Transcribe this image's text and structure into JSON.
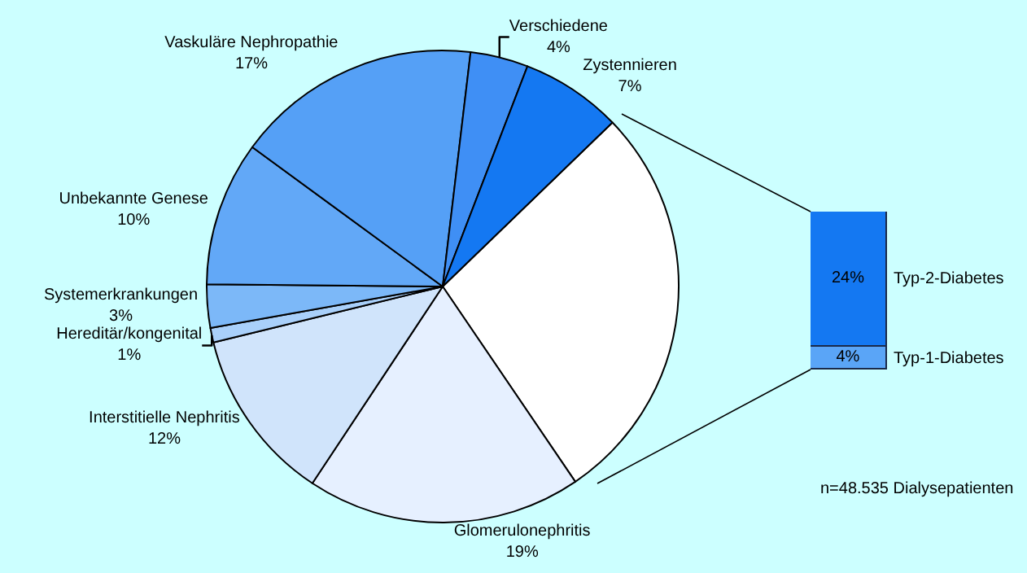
{
  "chart_data": [
    {
      "type": "pie",
      "categories": [
        null,
        "Glomerulonephritis",
        "Interstitielle Nephritis",
        "Hereditär/kongenital",
        "Systemerkrankungen",
        "Unbekannte Genese",
        "Vaskuläre Nephropathie",
        "Verschiedene",
        "Zystennieren"
      ],
      "values": [
        28,
        19,
        12,
        1,
        3,
        10,
        17,
        4,
        7
      ],
      "value_labels": [
        null,
        "19%",
        "12%",
        "1%",
        "3%",
        "10%",
        "17%",
        "4%",
        "7%"
      ],
      "colors": [
        "#ffffff",
        "#e6f0ff",
        "#d0e4fb",
        "#a9d0fa",
        "#7cb8f8",
        "#62a8f7",
        "#55a0f6",
        "#3f8ff5",
        "#1478f2"
      ],
      "annotations": [
        "n=48.535 Dialysepatienten"
      ]
    },
    {
      "type": "bar",
      "stacked": true,
      "tick_labels": false,
      "categories": [
        null
      ],
      "series": [
        {
          "name": "Typ-1-Diabetes",
          "color": "#5aa5f7",
          "values": [
            4
          ],
          "value_labels": [
            "4%"
          ]
        },
        {
          "name": "Typ-2-Diabetes",
          "color": "#1478f2",
          "values": [
            24
          ],
          "value_labels": [
            "24%"
          ]
        }
      ]
    }
  ]
}
